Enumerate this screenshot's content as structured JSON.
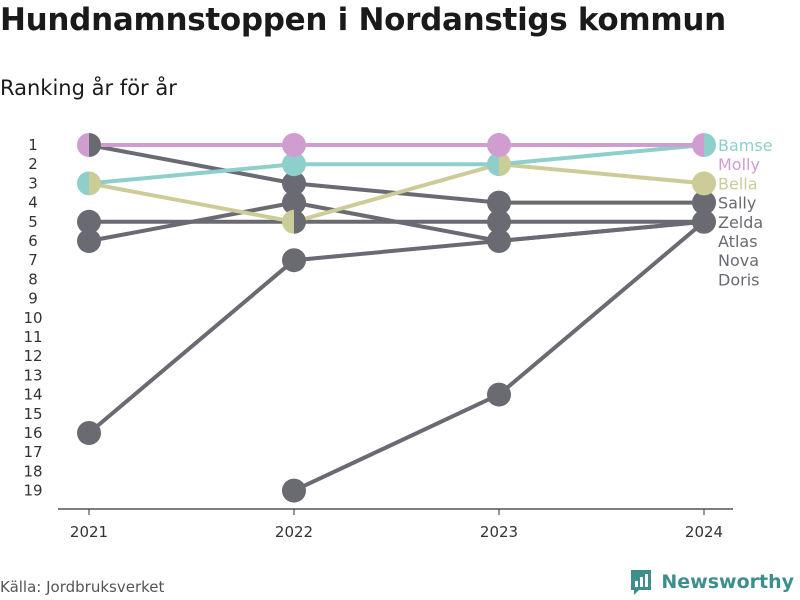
{
  "title": "Hundnamnstoppen i Nordanstigs kommun",
  "subtitle": "Ranking år för år",
  "source": "Källa: Jordbruksverket",
  "brand": "Newsworthy",
  "chart_data": {
    "type": "line",
    "x": [
      "2021",
      "2022",
      "2023",
      "2024"
    ],
    "y_ticks": [
      "1",
      "2",
      "3",
      "4",
      "5",
      "6",
      "7",
      "8",
      "9",
      "10",
      "11",
      "12",
      "13",
      "14",
      "15",
      "16",
      "17",
      "18",
      "19"
    ],
    "ylim": [
      1,
      19
    ],
    "y_reversed": true,
    "grid": false,
    "series": [
      {
        "name": "Doris",
        "values": [
          null,
          19,
          14,
          5
        ],
        "color": "#6a6a72"
      },
      {
        "name": "Nova",
        "values": [
          16,
          7,
          6,
          5
        ],
        "color": "#6a6a72"
      },
      {
        "name": "Atlas",
        "values": [
          6,
          4,
          6,
          5
        ],
        "color": "#6a6a72"
      },
      {
        "name": "Zelda",
        "values": [
          5,
          5,
          5,
          5
        ],
        "color": "#6a6a72"
      },
      {
        "name": "Sally",
        "values": [
          1,
          3,
          4,
          4
        ],
        "color": "#6a6a72"
      },
      {
        "name": "Bella",
        "values": [
          3,
          5,
          2,
          3
        ],
        "color": "#cccc99"
      },
      {
        "name": "Bamse",
        "values": [
          3,
          2,
          2,
          1
        ],
        "color": "#8ecfcb"
      },
      {
        "name": "Molly",
        "values": [
          1,
          1,
          1,
          1
        ],
        "color": "#cf9dd0"
      }
    ],
    "label_order": [
      "Bamse",
      "Molly",
      "Bella",
      "Sally",
      "Zelda",
      "Atlas",
      "Nova",
      "Doris"
    ]
  }
}
